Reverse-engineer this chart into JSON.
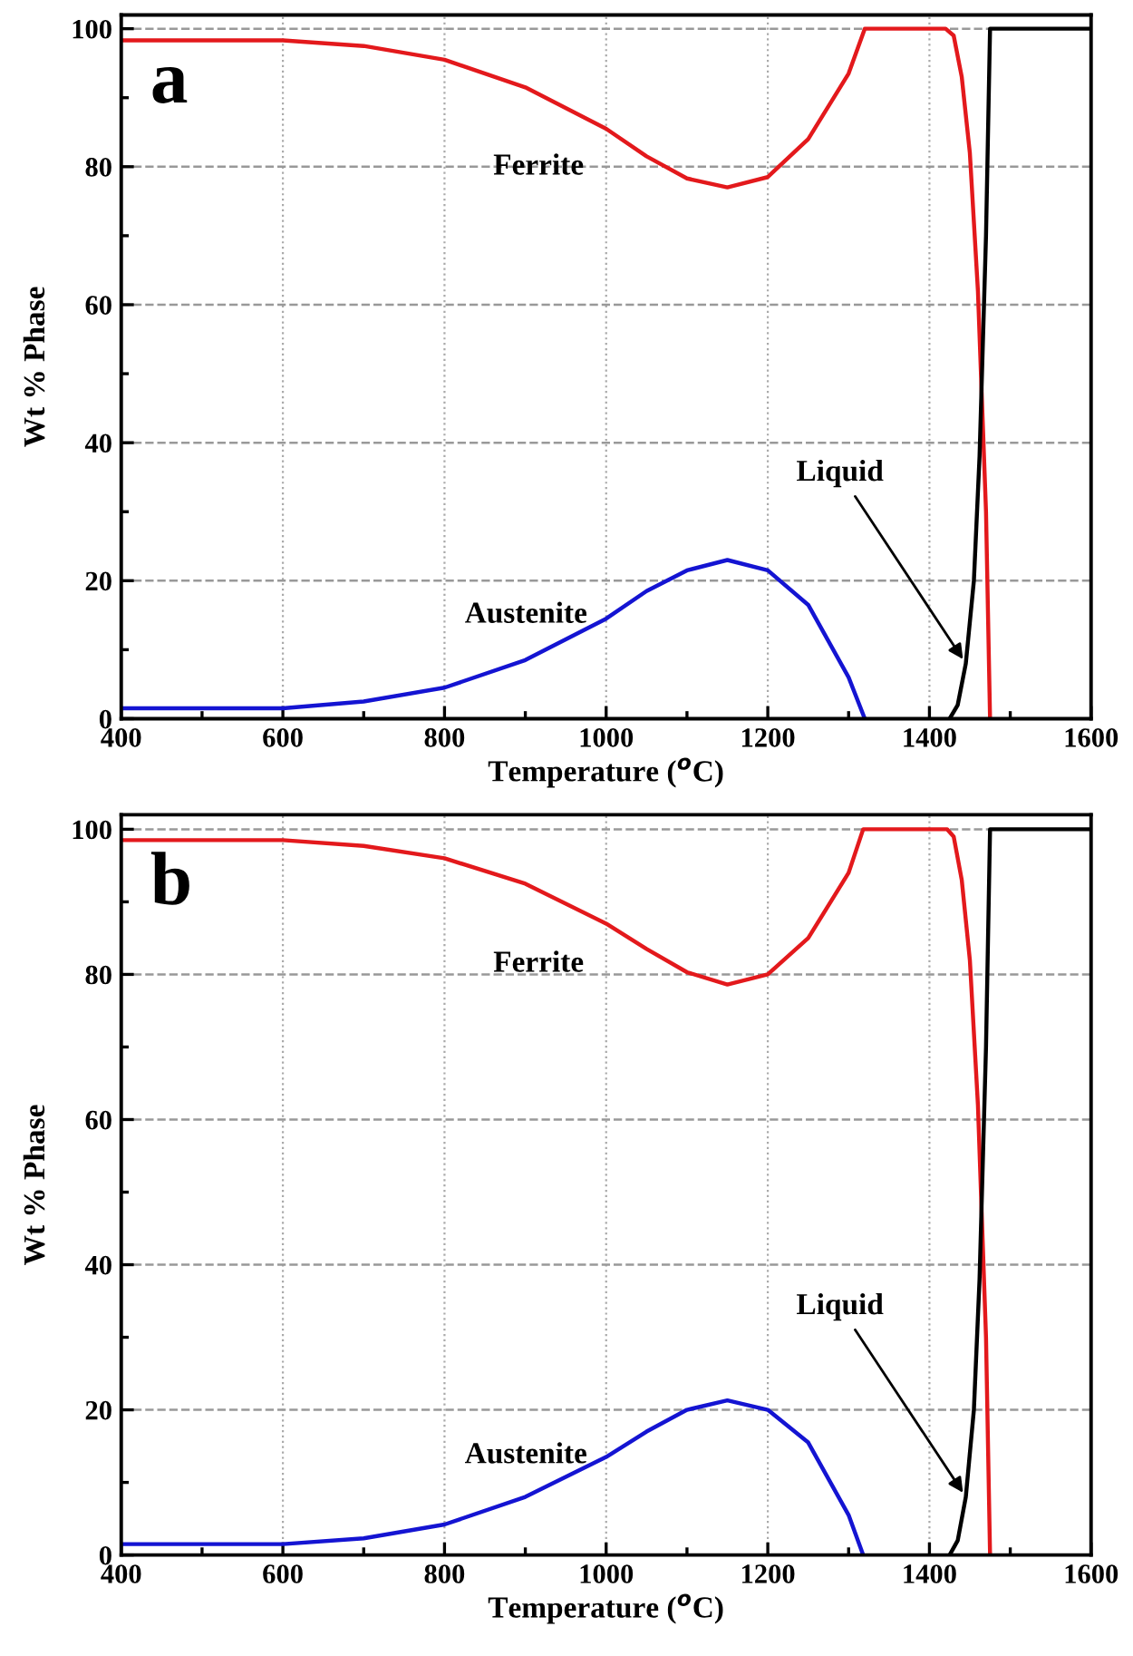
{
  "chart_data": [
    {
      "type": "line",
      "xlabel": "Temperature ($^{o}$C)",
      "ylabel": "Wt % Phase",
      "annotations": [
        "a"
      ],
      "xlim": [
        400,
        1600
      ],
      "ylim": [
        0,
        102
      ],
      "xticks": [
        400,
        600,
        800,
        1000,
        1200,
        1400,
        1600
      ],
      "yticks": [
        0,
        20,
        40,
        60,
        80,
        100
      ],
      "grid": true,
      "legend": false,
      "series": [
        {
          "name": "Ferrite",
          "color": "#e3191c",
          "x": [
            400,
            600,
            700,
            800,
            900,
            1000,
            1050,
            1100,
            1150,
            1200,
            1250,
            1300,
            1320,
            1420,
            1430,
            1440,
            1450,
            1460,
            1470,
            1475
          ],
          "values": [
            98.3,
            98.3,
            97.5,
            95.5,
            91.5,
            85.5,
            81.5,
            78.3,
            77.0,
            78.5,
            84,
            93.5,
            100,
            100,
            99,
            93,
            82,
            62,
            30,
            0
          ]
        },
        {
          "name": "Austenite",
          "color": "#1414d2",
          "x": [
            400,
            600,
            700,
            800,
            900,
            1000,
            1050,
            1100,
            1150,
            1200,
            1250,
            1300,
            1320
          ],
          "values": [
            1.5,
            1.5,
            2.5,
            4.5,
            8.5,
            14.5,
            18.5,
            21.5,
            23.0,
            21.5,
            16.5,
            6,
            0
          ]
        },
        {
          "name": "Liquid",
          "color": "#000000",
          "x": [
            1425,
            1435,
            1445,
            1455,
            1462,
            1470,
            1475,
            1600
          ],
          "values": [
            0,
            2,
            8,
            20,
            38,
            70,
            100,
            100
          ]
        }
      ]
    },
    {
      "type": "line",
      "xlabel": "Temperature ($^{o}$C)",
      "ylabel": "Wt % Phase",
      "annotations": [
        "b"
      ],
      "xlim": [
        400,
        1600
      ],
      "ylim": [
        0,
        102
      ],
      "xticks": [
        400,
        600,
        800,
        1000,
        1200,
        1400,
        1600
      ],
      "yticks": [
        0,
        20,
        40,
        60,
        80,
        100
      ],
      "grid": true,
      "legend": false,
      "series": [
        {
          "name": "Ferrite",
          "color": "#e3191c",
          "x": [
            400,
            600,
            700,
            800,
            900,
            1000,
            1050,
            1100,
            1150,
            1200,
            1250,
            1300,
            1318,
            1422,
            1430,
            1440,
            1450,
            1460,
            1470,
            1475
          ],
          "values": [
            98.5,
            98.5,
            97.7,
            96,
            92.5,
            87,
            83.5,
            80.3,
            78.6,
            80,
            85,
            94,
            100,
            100,
            99,
            93,
            82,
            62,
            30,
            0
          ]
        },
        {
          "name": "Austenite",
          "color": "#1414d2",
          "x": [
            400,
            600,
            700,
            800,
            900,
            1000,
            1050,
            1100,
            1150,
            1200,
            1250,
            1300,
            1318
          ],
          "values": [
            1.5,
            1.5,
            2.3,
            4.2,
            8,
            13.5,
            17,
            20,
            21.3,
            20,
            15.5,
            5.5,
            0
          ]
        },
        {
          "name": "Liquid",
          "color": "#000000",
          "x": [
            1425,
            1435,
            1445,
            1455,
            1462,
            1470,
            1475,
            1600
          ],
          "values": [
            0,
            2,
            8,
            20,
            38,
            70,
            100,
            100
          ]
        }
      ]
    }
  ]
}
